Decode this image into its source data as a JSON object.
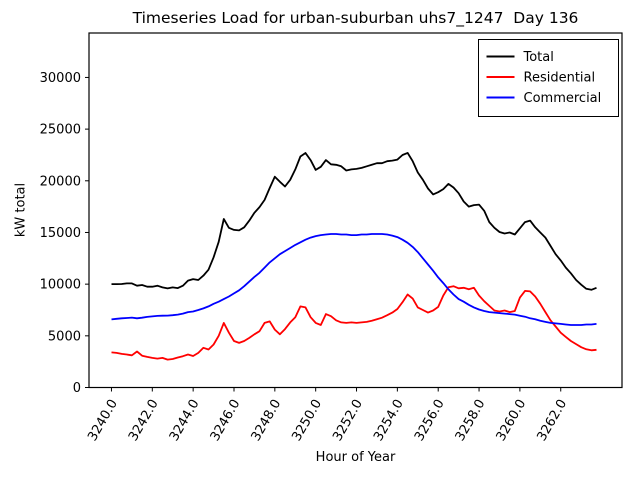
{
  "title": "Timeseries Load for urban-suburban uhs7_1247  Day 136",
  "chart_data": {
    "type": "line",
    "title": "Timeseries Load for urban-suburban uhs7_1247  Day 136",
    "xlabel": "Hour of Year",
    "ylabel": "kW total",
    "grid": false,
    "legend_position": "upper right",
    "xlim": [
      3238.9,
      3265.0
    ],
    "ylim": [
      0,
      34300
    ],
    "xticks": [
      3240,
      3242,
      3244,
      3246,
      3248,
      3250,
      3252,
      3254,
      3256,
      3258,
      3260,
      3262
    ],
    "xtick_labels": [
      "3240.0",
      "3242.0",
      "3244.0",
      "3246.0",
      "3248.0",
      "3250.0",
      "3252.0",
      "3254.0",
      "3256.0",
      "3258.0",
      "3260.0",
      "3262.0"
    ],
    "yticks": [
      0,
      5000,
      10000,
      15000,
      20000,
      25000,
      30000
    ],
    "ytick_labels": [
      "0",
      "5000",
      "10000",
      "15000",
      "20000",
      "25000",
      "30000"
    ],
    "x": [
      3240.0,
      3240.25,
      3240.5,
      3240.75,
      3241.0,
      3241.25,
      3241.5,
      3241.75,
      3242.0,
      3242.25,
      3242.5,
      3242.75,
      3243.0,
      3243.25,
      3243.5,
      3243.75,
      3244.0,
      3244.25,
      3244.5,
      3244.75,
      3245.0,
      3245.25,
      3245.5,
      3245.75,
      3246.0,
      3246.25,
      3246.5,
      3246.75,
      3247.0,
      3247.25,
      3247.5,
      3247.75,
      3248.0,
      3248.25,
      3248.5,
      3248.75,
      3249.0,
      3249.25,
      3249.5,
      3249.75,
      3250.0,
      3250.25,
      3250.5,
      3250.75,
      3251.0,
      3251.25,
      3251.5,
      3251.75,
      3252.0,
      3252.25,
      3252.5,
      3252.75,
      3253.0,
      3253.25,
      3253.5,
      3253.75,
      3254.0,
      3254.25,
      3254.5,
      3254.75,
      3255.0,
      3255.25,
      3255.5,
      3255.75,
      3256.0,
      3256.25,
      3256.5,
      3256.75,
      3257.0,
      3257.25,
      3257.5,
      3257.75,
      3258.0,
      3258.25,
      3258.5,
      3258.75,
      3259.0,
      3259.25,
      3259.5,
      3259.75,
      3260.0,
      3260.25,
      3260.5,
      3260.75,
      3261.0,
      3261.25,
      3261.5,
      3261.75,
      3262.0,
      3262.25,
      3262.5,
      3262.75,
      3263.0,
      3263.25,
      3263.5,
      3263.75
    ],
    "series": [
      {
        "name": "Total",
        "color": "#000000",
        "values": [
          10000,
          10000,
          10010,
          10070,
          10075,
          9850,
          9915,
          9750,
          9750,
          9850,
          9690,
          9590,
          9690,
          9620,
          9850,
          10340,
          10490,
          10400,
          10830,
          11400,
          12600,
          14100,
          16300,
          15450,
          15250,
          15200,
          15500,
          16150,
          16900,
          17450,
          18150,
          19300,
          20400,
          19900,
          19450,
          20100,
          21100,
          22350,
          22690,
          22000,
          21050,
          21350,
          22000,
          21600,
          21550,
          21400,
          21000,
          21100,
          21150,
          21250,
          21400,
          21550,
          21700,
          21700,
          21900,
          21950,
          22050,
          22500,
          22700,
          21900,
          20800,
          20100,
          19250,
          18680,
          18900,
          19200,
          19700,
          19350,
          18800,
          18000,
          17500,
          17650,
          17700,
          17100,
          16000,
          15450,
          15050,
          14900,
          15000,
          14800,
          15400,
          16000,
          16150,
          15500,
          15000,
          14500,
          13700,
          12900,
          12300,
          11600,
          11050,
          10400,
          9950,
          9550,
          9450,
          9650
        ]
      },
      {
        "name": "Residential",
        "color": "#ff0000",
        "values": [
          3400,
          3350,
          3250,
          3190,
          3120,
          3480,
          3080,
          2960,
          2860,
          2800,
          2860,
          2700,
          2760,
          2900,
          3030,
          3190,
          3050,
          3350,
          3840,
          3680,
          4160,
          5000,
          6250,
          5300,
          4500,
          4320,
          4500,
          4800,
          5150,
          5450,
          6250,
          6400,
          5600,
          5150,
          5650,
          6300,
          6800,
          7850,
          7750,
          6800,
          6250,
          6050,
          7100,
          6900,
          6500,
          6300,
          6250,
          6300,
          6250,
          6300,
          6350,
          6450,
          6600,
          6750,
          7000,
          7250,
          7600,
          8250,
          9000,
          8600,
          7750,
          7500,
          7250,
          7450,
          7800,
          8900,
          9700,
          9800,
          9600,
          9650,
          9500,
          9650,
          8900,
          8350,
          7900,
          7450,
          7350,
          7450,
          7300,
          7400,
          8700,
          9350,
          9300,
          8800,
          8100,
          7300,
          6500,
          5900,
          5300,
          4900,
          4500,
          4200,
          3900,
          3700,
          3600,
          3650
        ]
      },
      {
        "name": "Commercial",
        "color": "#0000ff",
        "values": [
          6590,
          6650,
          6700,
          6720,
          6760,
          6700,
          6750,
          6830,
          6880,
          6925,
          6950,
          6960,
          7000,
          7050,
          7150,
          7300,
          7350,
          7500,
          7650,
          7850,
          8100,
          8300,
          8550,
          8800,
          9100,
          9400,
          9800,
          10250,
          10700,
          11100,
          11600,
          12100,
          12500,
          12900,
          13200,
          13500,
          13800,
          14050,
          14300,
          14500,
          14650,
          14750,
          14800,
          14850,
          14850,
          14800,
          14800,
          14750,
          14750,
          14800,
          14800,
          14850,
          14850,
          14850,
          14800,
          14700,
          14550,
          14300,
          14000,
          13600,
          13100,
          12500,
          11900,
          11300,
          10650,
          10100,
          9500,
          9000,
          8550,
          8300,
          8000,
          7750,
          7550,
          7400,
          7300,
          7250,
          7200,
          7150,
          7100,
          7050,
          6950,
          6850,
          6700,
          6600,
          6450,
          6350,
          6250,
          6200,
          6150,
          6100,
          6050,
          6050,
          6050,
          6100,
          6100,
          6150
        ]
      }
    ],
    "legend": {
      "entries": [
        "Total",
        "Residential",
        "Commercial"
      ]
    }
  }
}
